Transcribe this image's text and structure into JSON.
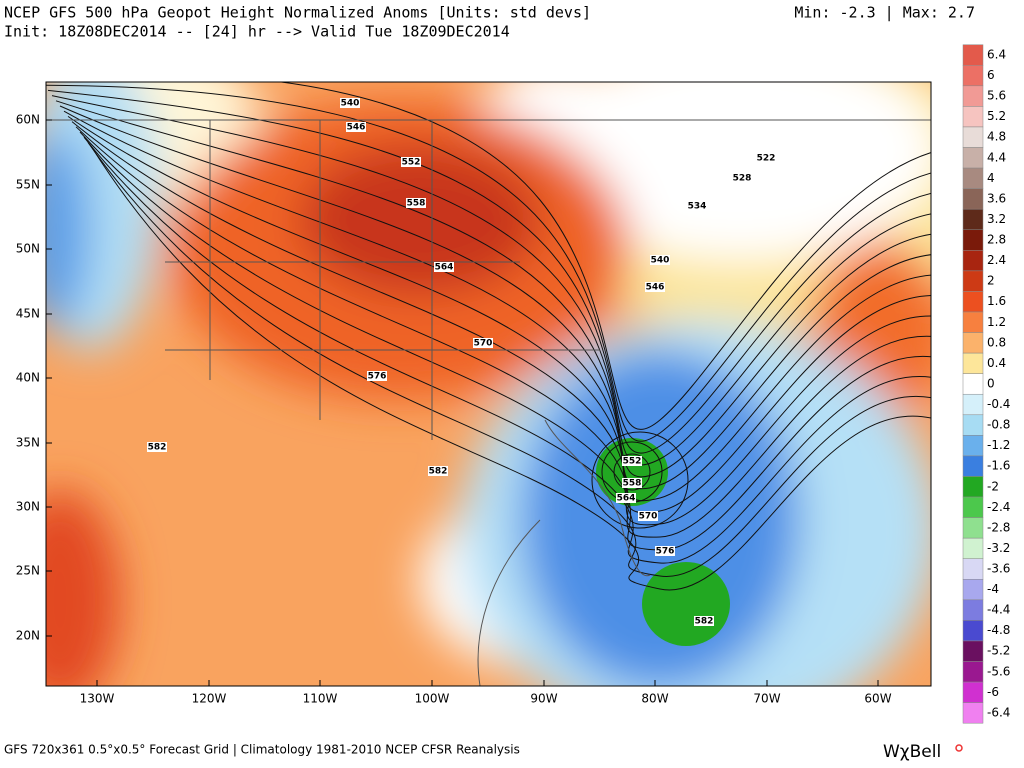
{
  "header": {
    "title": "NCEP GFS 500 hPa Geopot Height Normalized Anoms [Units: std devs]",
    "init": "Init: 18Z08DEC2014 -- [24] hr --> Valid Tue 18Z09DEC2014",
    "minmax": "Min:  -2.3 | Max:   2.7"
  },
  "map": {
    "lat_labels": [
      "60N",
      "55N",
      "50N",
      "45N",
      "40N",
      "35N",
      "30N",
      "25N",
      "20N"
    ],
    "lon_labels": [
      "130W",
      "120W",
      "110W",
      "100W",
      "90W",
      "80W",
      "70W",
      "60W"
    ],
    "contour_labels": [
      "540",
      "546",
      "552",
      "558",
      "564",
      "570",
      "576",
      "582",
      "582",
      "522",
      "528",
      "534",
      "540",
      "546",
      "552",
      "558",
      "564",
      "570",
      "576",
      "582"
    ]
  },
  "colorbar": {
    "labels": [
      "6.4",
      "6",
      "5.6",
      "5.2",
      "4.8",
      "4.4",
      "4",
      "3.6",
      "3.2",
      "2.8",
      "2.4",
      "2",
      "1.6",
      "1.2",
      "0.8",
      "0.4",
      "0",
      "-0.4",
      "-0.8",
      "-1.2",
      "-1.6",
      "-2",
      "-2.4",
      "-2.8",
      "-3.2",
      "-3.6",
      "-4",
      "-4.4",
      "-4.8",
      "-5.2",
      "-5.6",
      "-6",
      "-6.4"
    ],
    "colors": [
      "#e35a4b",
      "#ec7065",
      "#f19a95",
      "#f6c4c0",
      "#e8dcd8",
      "#c8b0a8",
      "#a88a80",
      "#8a6558",
      "#5e2a1a",
      "#7a1a0a",
      "#a82510",
      "#cd3a15",
      "#ec5020",
      "#f7803f",
      "#fbb26b",
      "#fde69a",
      "#ffffff",
      "#d5f0fa",
      "#a7dcf3",
      "#6ab0ec",
      "#3a7fe0",
      "#22a822",
      "#4cc84c",
      "#8fe08f",
      "#d0f2d0",
      "#d8d8f4",
      "#a8a8ee",
      "#7c7ce0",
      "#4a4ad0",
      "#6a1060",
      "#9a1890",
      "#d030d0",
      "#f080f0"
    ]
  },
  "footer": {
    "source": "GFS 720x361 0.5°x0.5° Forecast Grid | Climatology 1981-2010 NCEP CFSR Reanalysis",
    "logo": "WχBell"
  }
}
